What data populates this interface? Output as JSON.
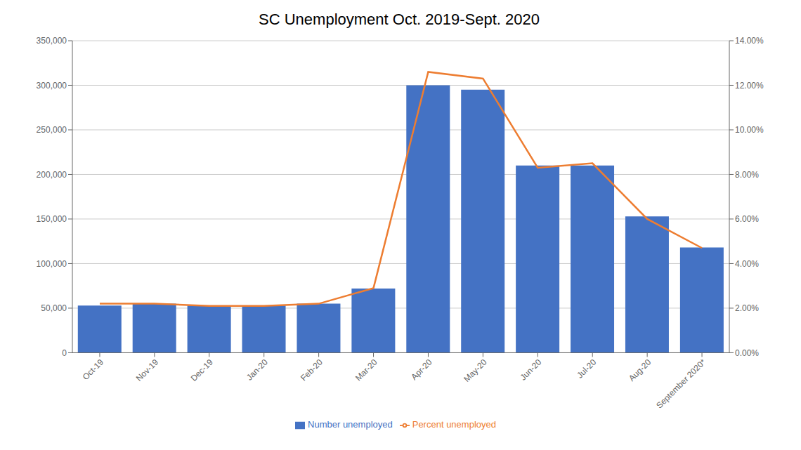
{
  "chart_data": {
    "type": "bar",
    "title": "SC Unemployment Oct. 2019-Sept. 2020",
    "categories": [
      "Oct-19",
      "Nov-19",
      "Dec-19",
      "Jan-20",
      "Feb-20",
      "Mar-20",
      "Apr-20",
      "May-20",
      "Jun-20",
      "Jul-20",
      "Aug-20",
      "September 2020*"
    ],
    "series": [
      {
        "name": "Number unemployed",
        "type": "bar",
        "color": "#4472C4",
        "values": [
          53000,
          55000,
          53000,
          53000,
          55000,
          72000,
          300000,
          295000,
          210000,
          210000,
          153000,
          118000
        ]
      },
      {
        "name": "Percent unemployed",
        "type": "line",
        "color": "#ED7D31",
        "axis": "y2",
        "values": [
          2.2,
          2.2,
          2.1,
          2.1,
          2.2,
          2.9,
          12.6,
          12.3,
          8.3,
          8.5,
          6.0,
          4.7
        ]
      }
    ],
    "ylim": [
      0,
      350000
    ],
    "yticks": [
      0,
      {
        "value": 50000,
        "label": "50,000"
      },
      {
        "value": 100000,
        "label": "100,000"
      },
      {
        "value": 150000,
        "label": "150,000"
      },
      {
        "value": 200000,
        "label": "200,000"
      },
      {
        "value": 250000,
        "label": "250,000"
      },
      {
        "value": 300000,
        "label": "300,000"
      },
      {
        "value": 350000,
        "label": "350,000"
      }
    ],
    "y2lim": [
      0,
      14.0
    ],
    "y2ticks": [
      {
        "value": 0.0,
        "label": "0.00%"
      },
      {
        "value": 2.0,
        "label": "2.00%"
      },
      {
        "value": 4.0,
        "label": "4.00%"
      },
      {
        "value": 6.0,
        "label": "6.00%"
      },
      {
        "value": 8.0,
        "label": "8.00%"
      },
      {
        "value": 10.0,
        "label": "10.00%"
      },
      {
        "value": 12.0,
        "label": "12.00%"
      },
      {
        "value": 14.0,
        "label": "14.00%"
      }
    ],
    "grid": true,
    "legend": "bottom"
  }
}
